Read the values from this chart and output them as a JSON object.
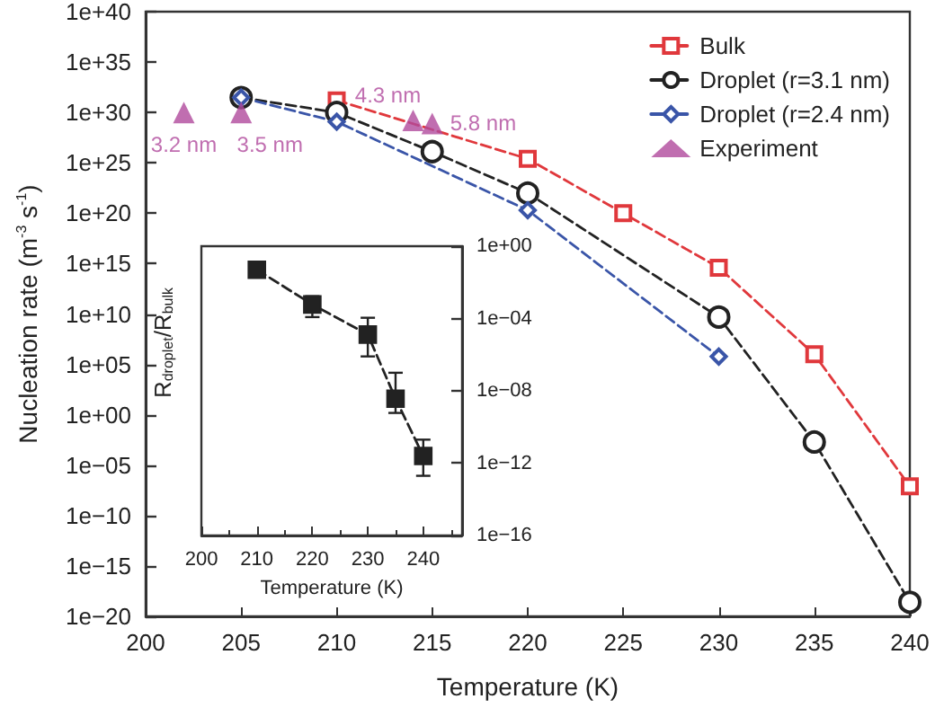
{
  "chart_data": [
    {
      "type": "line",
      "xlabel": "Temperature (K)",
      "ylabel": "Nucleation rate (m$^{-3}$ s$^{-1}$)",
      "log": "y",
      "grid": false,
      "legend": "top right",
      "line_style": "dashed",
      "xlim": [
        200,
        240
      ],
      "xticks": [
        200,
        205,
        210,
        215,
        220,
        225,
        230,
        235,
        240
      ],
      "ylim": [
        1e-20,
        1e+40
      ],
      "yticks": [
        {
          "value": 1e-20,
          "label": "1e−20"
        },
        {
          "value": 1e-15,
          "label": "1e−15"
        },
        {
          "value": 1e-10,
          "label": "1e−10"
        },
        {
          "value": 1e-05,
          "label": "1e−05"
        },
        {
          "value": 1,
          "label": "1e+00"
        },
        {
          "value": 100000.0,
          "label": "1e+05"
        },
        {
          "value": 10000000000.0,
          "label": "1e+10"
        },
        {
          "value": 1000000000000000.0,
          "label": "1e+15"
        },
        {
          "value": 1e+20,
          "label": "1e+20"
        },
        {
          "value": 1e+25,
          "label": "1e+25"
        },
        {
          "value": 1e+30,
          "label": "1e+30"
        },
        {
          "value": 1e+35,
          "label": "1e+35"
        },
        {
          "value": 1e+40,
          "label": "1e+40"
        }
      ],
      "series": [
        {
          "name": "Bulk",
          "color": "#e0383c",
          "marker": "square",
          "x": [
            210,
            220,
            225,
            230,
            235,
            240
          ],
          "values": [
            1.6e+31,
            2.5e+25,
            1e+20,
            400000000000000.0,
            1000000.0,
            8e-08
          ]
        },
        {
          "name": "Droplet (r=3.1 nm)",
          "color": "#222222",
          "marker": "circle",
          "x": [
            205,
            210,
            215,
            220,
            230,
            235,
            240
          ],
          "values": [
            3e+31,
            1e+30,
            1.3e+26,
            1e+22,
            5000000000.0,
            0.002,
            2.5e-19
          ]
        },
        {
          "name": "Droplet (r=2.4 nm)",
          "color": "#3a55a8",
          "marker": "diamond",
          "x": [
            205,
            210,
            220,
            230
          ],
          "values": [
            3e+31,
            1.2e+29,
            2e+20,
            600000.0
          ]
        },
        {
          "name": "Experiment",
          "type": "scatter",
          "color": "#b04a9c",
          "marker": "triangle",
          "x": [
            202,
            205,
            214,
            215
          ],
          "values": [
            1e+30,
            1e+30,
            1.6e+29,
            8e+28
          ]
        }
      ],
      "annotations": [
        {
          "text": "3.2 nm",
          "x": 202,
          "y": 1e+30
        },
        {
          "text": "3.5 nm",
          "x": 205,
          "y": 1e+30
        },
        {
          "text": "4.3 nm",
          "x": 214,
          "y": 1.6e+29
        },
        {
          "text": "5.8 nm",
          "x": 215,
          "y": 8e+28
        }
      ]
    },
    {
      "type": "line",
      "xlabel": "Temperature (K)",
      "ylabel": "R$_{droplet}$/R$_{bulk}$",
      "log": "y",
      "grid": false,
      "line_style": "dashed",
      "marker": "square",
      "xlim": [
        200,
        247
      ],
      "xticks": [
        200,
        210,
        220,
        230,
        240
      ],
      "ylim": [
        1e-16,
        1
      ],
      "yticks": [
        {
          "value": 1e-16,
          "label": "1e−16"
        },
        {
          "value": 1e-12,
          "label": "1e−12"
        },
        {
          "value": 1e-08,
          "label": "1e−08"
        },
        {
          "value": 0.0001,
          "label": "1e−04"
        },
        {
          "value": 1,
          "label": "1e+00"
        }
      ],
      "series": [
        {
          "color": "#222222",
          "x": [
            210,
            220,
            230,
            235,
            240
          ],
          "values": [
            0.05,
            0.0006,
            1.3e-05,
            3.7e-09,
            2.5e-12
          ],
          "errors": [
            null,
            [
              0.00012,
              0.0017
            ],
            [
              8e-07,
              0.00011
            ],
            [
              6e-10,
              1e-07
            ],
            [
              2e-13,
              2e-11
            ]
          ]
        }
      ]
    }
  ]
}
